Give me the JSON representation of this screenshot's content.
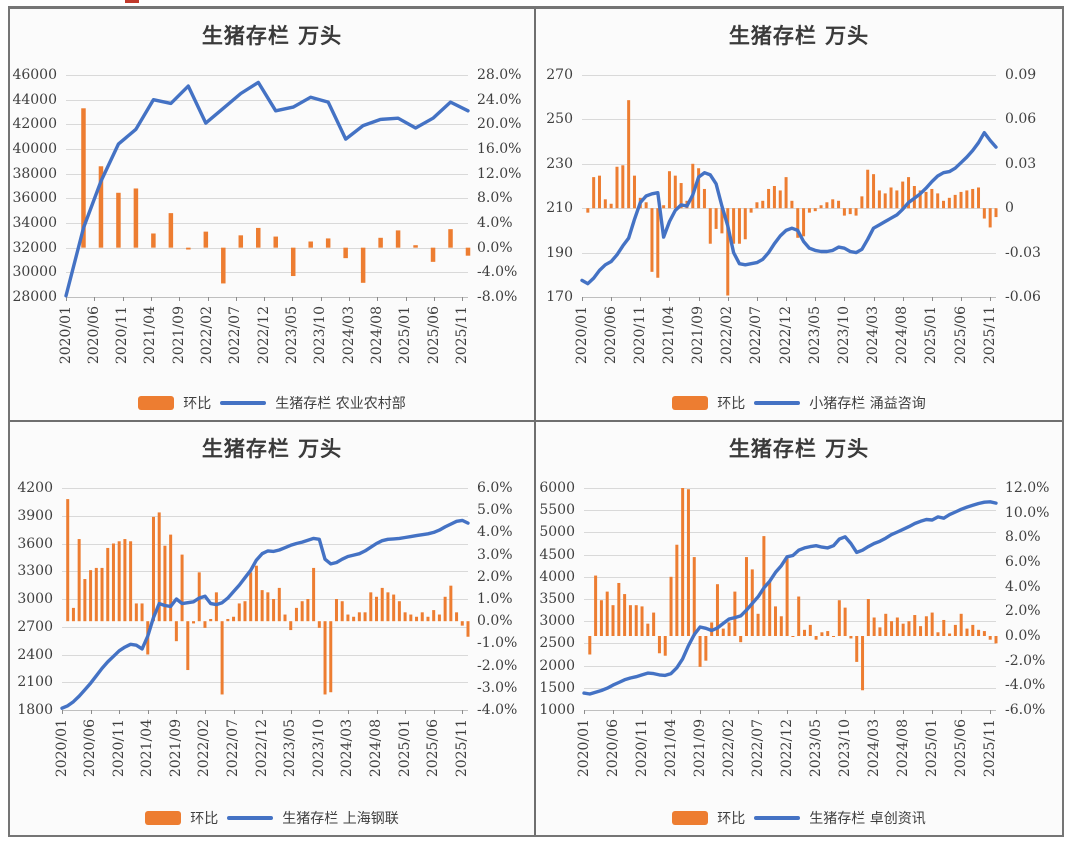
{
  "page": {
    "colors": {
      "bar": "#ED7D31",
      "line": "#4472C4",
      "grid": "#d9d9d9",
      "axis": "#bfbfbf",
      "tick": "#8c8c8c"
    }
  },
  "x_labels": [
    "2020/01",
    "2020/06",
    "2020/11",
    "2021/04",
    "2021/09",
    "2022/02",
    "2022/07",
    "2022/12",
    "2023/05",
    "2023/10",
    "2024/03",
    "2024/08",
    "2025/01",
    "2025/06",
    "2025/11"
  ],
  "charts": [
    {
      "title": "生猪存栏 万头",
      "legend": {
        "bar_label": "环比",
        "line_label": "生猪存栏 农业农村部"
      },
      "chart_data": {
        "type": "bar+line combo",
        "frequency": "quarterly",
        "x_labels": [
          "2020/01",
          "2020/06",
          "2020/11",
          "2021/04",
          "2021/09",
          "2022/02",
          "2022/07",
          "2022/12",
          "2023/05",
          "2023/10",
          "2024/03",
          "2024/08",
          "2025/01",
          "2025/06",
          "2025/11"
        ],
        "left_axis": {
          "min": 28000,
          "max": 46000,
          "ticks": [
            "46000",
            "44000",
            "42000",
            "40000",
            "38000",
            "36000",
            "34000",
            "32000",
            "30000",
            "28000"
          ]
        },
        "right_axis": {
          "min": -8,
          "max": 28,
          "ticks": [
            "28.0%",
            "24.0%",
            "20.0%",
            "16.0%",
            "12.0%",
            "8.0%",
            "4.0%",
            "0.0%",
            "-4.0%",
            "-8.0%"
          ]
        },
        "series": [
          {
            "name": "生猪存栏 农业农村部",
            "type": "line",
            "axis": "left",
            "values": [
              28100,
              33600,
              37400,
              40400,
              41600,
              44000,
              43700,
              45100,
              42100,
              43300,
              44500,
              45400,
              43100,
              43400,
              44200,
              43800,
              40800,
              41900,
              42400,
              42500,
              41700,
              42500,
              43800,
              43100
            ]
          },
          {
            "name": "环比",
            "type": "bar",
            "axis": "right",
            "unit": "%",
            "values": [
              null,
              22.6,
              13.2,
              8.9,
              9.6,
              2.3,
              5.6,
              -0.3,
              2.6,
              -5.8,
              2.0,
              3.2,
              1.8,
              -4.6,
              1.0,
              1.5,
              -1.7,
              -5.7,
              1.6,
              2.8,
              0.4,
              -2.3,
              3.0,
              -1.3
            ]
          }
        ]
      }
    },
    {
      "title": "生猪存栏 万头",
      "legend": {
        "bar_label": "环比",
        "line_label": "小猪存栏 涌益咨询"
      },
      "chart_data": {
        "type": "bar+line combo",
        "frequency": "monthly",
        "x_labels": [
          "2020/01",
          "2020/06",
          "2020/11",
          "2021/04",
          "2021/09",
          "2022/02",
          "2022/07",
          "2022/12",
          "2023/05",
          "2023/10",
          "2024/03",
          "2024/08",
          "2025/01",
          "2025/06",
          "2025/11"
        ],
        "left_axis": {
          "min": 170,
          "max": 270,
          "ticks": [
            "270",
            "250",
            "230",
            "210",
            "190",
            "170"
          ]
        },
        "right_axis": {
          "min": -0.06,
          "max": 0.09,
          "ticks": [
            "0.09",
            "0.06",
            "0.03",
            "0",
            "-0.03",
            "-0.06"
          ]
        },
        "series": [
          {
            "name": "小猪存栏 涌益咨询",
            "type": "line",
            "axis": "left",
            "values": [
              177.5,
              176,
              178.5,
              182,
              184.5,
              186,
              189,
              193,
              196.5,
              205,
              212.5,
              215.5,
              216.5,
              217,
              197,
              204,
              209,
              211.5,
              211,
              216,
              224,
              226,
              225,
              221,
              211,
              202,
              190,
              185,
              184.5,
              185,
              185.5,
              187,
              190,
              194,
              197.5,
              200,
              201,
              200,
              195,
              192,
              191,
              190.5,
              190.5,
              191,
              192.5,
              192,
              190.5,
              190,
              191.5,
              196,
              201,
              202.5,
              204,
              205.5,
              207,
              209.5,
              212.5,
              214.5,
              216.5,
              219,
              222,
              224.5,
              226,
              226.5,
              228,
              230.5,
              233,
              236,
              239.5,
              244,
              240.5,
              237.5
            ]
          },
          {
            "name": "环比",
            "type": "bar",
            "axis": "right",
            "unit": "ratio",
            "values": [
              null,
              -0.003,
              0.021,
              0.022,
              0.006,
              0.003,
              0.028,
              0.029,
              0.073,
              0.022,
              0.007,
              0.004,
              -0.043,
              -0.047,
              0.002,
              0.025,
              0.022,
              0.017,
              0.005,
              0.03,
              0.027,
              0.013,
              -0.024,
              -0.014,
              -0.017,
              -0.059,
              -0.024,
              -0.024,
              -0.021,
              -0.003,
              0.004,
              0.005,
              0.013,
              0.015,
              0.012,
              0.021,
              0.005,
              -0.02,
              -0.019,
              -0.003,
              -0.002,
              0.002,
              0.004,
              0.006,
              0.005,
              -0.005,
              -0.004,
              -0.005,
              0.008,
              0.026,
              0.023,
              0.012,
              0.01,
              0.014,
              0.012,
              0.018,
              0.021,
              0.015,
              0.012,
              0.011,
              0.013,
              0.01,
              0.005,
              0.007,
              0.009,
              0.011,
              0.012,
              0.013,
              0.014,
              -0.007,
              -0.013,
              -0.006
            ]
          }
        ]
      }
    },
    {
      "title": "生猪存栏 万头",
      "legend": {
        "bar_label": "环比",
        "line_label": "生猪存栏 上海钢联"
      },
      "chart_data": {
        "type": "bar+line combo",
        "frequency": "monthly",
        "x_labels": [
          "2020/01",
          "2020/06",
          "2020/11",
          "2021/04",
          "2021/09",
          "2022/02",
          "2022/07",
          "2022/12",
          "2023/05",
          "2023/10",
          "2024/03",
          "2024/08",
          "2025/01",
          "2025/06",
          "2025/11"
        ],
        "left_axis": {
          "min": 1800,
          "max": 4200,
          "ticks": [
            "4200",
            "3900",
            "3600",
            "3300",
            "3000",
            "2700",
            "2400",
            "2100",
            "1800"
          ]
        },
        "right_axis": {
          "min": -4,
          "max": 6,
          "ticks": [
            "6.0%",
            "5.0%",
            "4.0%",
            "3.0%",
            "2.0%",
            "1.0%",
            "0.0%",
            "-1.0%",
            "-2.0%",
            "-3.0%",
            "-4.0%"
          ]
        },
        "series": [
          {
            "name": "生猪存栏 上海钢联",
            "type": "line",
            "axis": "left",
            "values": [
              1820,
              1845,
              1890,
              1950,
              2020,
              2090,
              2170,
              2250,
              2320,
              2380,
              2440,
              2480,
              2510,
              2500,
              2460,
              2600,
              2800,
              2950,
              2930,
              2920,
              3000,
              2950,
              2960,
              2970,
              3010,
              3030,
              2950,
              2940,
              2960,
              3010,
              3080,
              3150,
              3230,
              3310,
              3420,
              3490,
              3520,
              3515,
              3530,
              3555,
              3580,
              3600,
              3615,
              3635,
              3655,
              3645,
              3430,
              3380,
              3395,
              3430,
              3460,
              3475,
              3490,
              3520,
              3560,
              3600,
              3630,
              3645,
              3650,
              3655,
              3665,
              3675,
              3685,
              3695,
              3705,
              3720,
              3745,
              3780,
              3810,
              3840,
              3850,
              3820
            ]
          },
          {
            "name": "环比",
            "type": "bar",
            "axis": "right",
            "unit": "%",
            "values": [
              null,
              5.5,
              0.6,
              3.7,
              1.9,
              2.3,
              2.4,
              2.4,
              3.3,
              3.5,
              3.6,
              3.7,
              3.6,
              0.8,
              0.8,
              -1.5,
              4.7,
              4.9,
              3.4,
              3.9,
              -0.9,
              3.0,
              -2.2,
              -0.1,
              2.2,
              -0.3,
              0.1,
              1.3,
              -3.3,
              0.1,
              0.2,
              0.8,
              0.9,
              2.2,
              2.5,
              1.4,
              1.3,
              1.0,
              1.5,
              0.3,
              -0.4,
              0.6,
              0.9,
              1.0,
              2.4,
              -0.3,
              -3.3,
              -3.2,
              1.0,
              0.9,
              0.3,
              0.2,
              0.4,
              0.4,
              1.3,
              1.1,
              1.5,
              1.3,
              1.2,
              0.9,
              0.4,
              0.3,
              0.2,
              0.4,
              0.2,
              0.5,
              0.3,
              1.1,
              1.6,
              0.4,
              -0.2,
              -0.7
            ]
          }
        ]
      }
    },
    {
      "title": "生猪存栏 万头",
      "legend": {
        "bar_label": "环比",
        "line_label": "生猪存栏 卓创资讯"
      },
      "chart_data": {
        "type": "bar+line combo",
        "frequency": "monthly",
        "x_labels": [
          "2020/01",
          "2020/06",
          "2020/11",
          "2021/04",
          "2021/09",
          "2022/02",
          "2022/07",
          "2022/12",
          "2023/05",
          "2023/10",
          "2024/03",
          "2024/08",
          "2025/01",
          "2025/06",
          "2025/11"
        ],
        "left_axis": {
          "min": 1000,
          "max": 6000,
          "ticks": [
            "6000",
            "5500",
            "5000",
            "4500",
            "4000",
            "3500",
            "3000",
            "2500",
            "2000",
            "1500",
            "1000"
          ]
        },
        "right_axis": {
          "min": -6,
          "max": 12,
          "ticks": [
            "12.0%",
            "10.0%",
            "8.0%",
            "6.0%",
            "4.0%",
            "2.0%",
            "0.0%",
            "-2.0%",
            "-4.0%",
            "-6.0%"
          ]
        },
        "series": [
          {
            "name": "生猪存栏 卓创资讯",
            "type": "line",
            "axis": "left",
            "values": [
              1380,
              1360,
              1400,
              1440,
              1490,
              1560,
              1620,
              1680,
              1720,
              1750,
              1790,
              1830,
              1820,
              1790,
              1780,
              1820,
              1950,
              2150,
              2450,
              2700,
              2870,
              2840,
              2790,
              2850,
              2950,
              3050,
              3080,
              3120,
              3250,
              3400,
              3550,
              3750,
              3900,
              4100,
              4250,
              4450,
              4480,
              4600,
              4650,
              4680,
              4700,
              4670,
              4650,
              4700,
              4850,
              4900,
              4750,
              4550,
              4600,
              4680,
              4750,
              4800,
              4870,
              4950,
              5010,
              5070,
              5130,
              5200,
              5250,
              5290,
              5280,
              5350,
              5320,
              5400,
              5460,
              5520,
              5570,
              5610,
              5650,
              5680,
              5690,
              5660
            ]
          },
          {
            "name": "环比",
            "type": "bar",
            "axis": "right",
            "unit": "%",
            "values": [
              null,
              -1.5,
              4.9,
              2.9,
              3.6,
              2.5,
              4.3,
              3.4,
              2.5,
              2.5,
              2.4,
              1.0,
              1.9,
              -1.4,
              -1.6,
              4.8,
              7.4,
              12.0,
              11.9,
              6.4,
              -2.5,
              -2.0,
              1.1,
              4.2,
              0.6,
              1.1,
              3.6,
              -0.5,
              6.4,
              5.4,
              1.8,
              8.1,
              4.5,
              2.4,
              1.6,
              6.3,
              0.0,
              3.2,
              0.5,
              0.9,
              -0.3,
              0.3,
              0.4,
              0.0,
              2.9,
              2.3,
              -0.2,
              -2.1,
              -4.4,
              3.0,
              1.5,
              0.7,
              1.8,
              1.2,
              1.5,
              1.0,
              1.2,
              1.7,
              0.8,
              1.6,
              1.9,
              0.3,
              1.3,
              0.2,
              0.9,
              1.8,
              0.6,
              0.9,
              0.5,
              0.4,
              -0.3,
              -0.6
            ]
          }
        ]
      }
    }
  ]
}
